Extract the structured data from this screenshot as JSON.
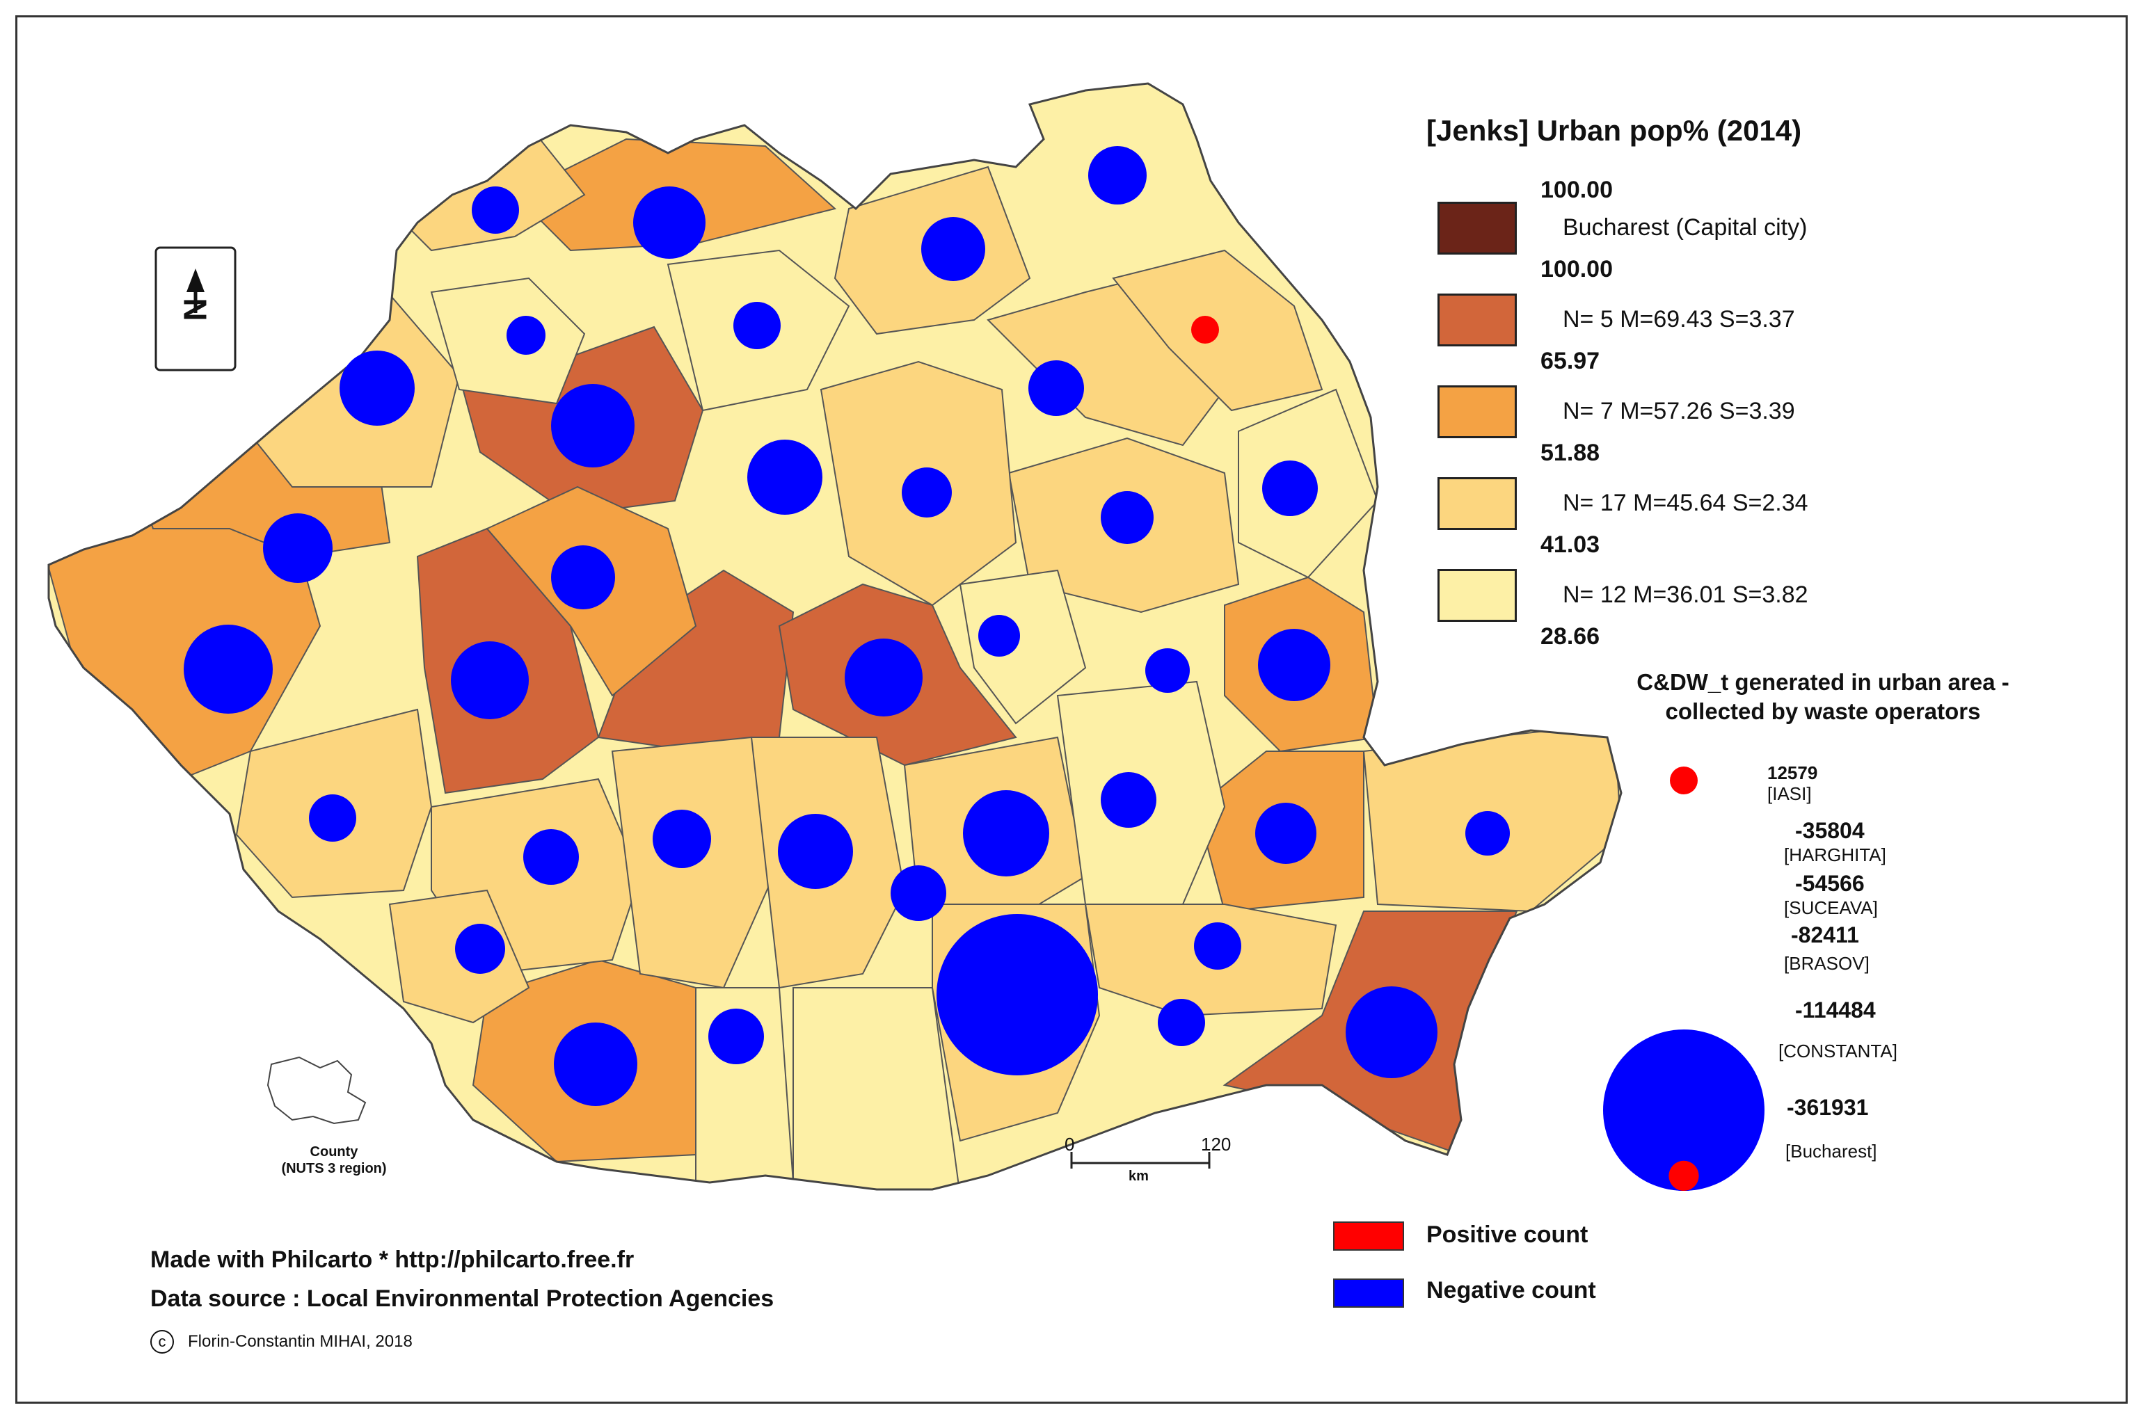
{
  "legend": {
    "title": "[Jenks] Urban pop% (2014)",
    "breaks": [
      "100.00",
      "100.00",
      "65.97",
      "51.88",
      "41.03",
      "28.66"
    ],
    "classes": [
      {
        "label": "Bucharest (Capital city)",
        "color": "#6b2418"
      },
      {
        "label": "N= 5  M=69.43  S=3.37",
        "color": "#d2663a"
      },
      {
        "label": "N= 7  M=57.26  S=3.39",
        "color": "#f4a244"
      },
      {
        "label": "N= 17  M=45.64  S=2.34",
        "color": "#fcd67f"
      },
      {
        "label": "N= 12  M=36.01  S=3.82",
        "color": "#fdf0a6"
      }
    ]
  },
  "proportional": {
    "title_line1": "C&DW_t generated in urban area -",
    "title_line2": "collected by waste operators",
    "items": [
      {
        "value": "12579",
        "county": "[IASI]",
        "color": "#ff0000"
      },
      {
        "value": "-35804",
        "county": "[HARGHITA]",
        "color": "#0000ff"
      },
      {
        "value": "-54566",
        "county": "[SUCEAVA]",
        "color": "#0000ff"
      },
      {
        "value": "-82411",
        "county": "[BRASOV]",
        "color": "#0000ff"
      },
      {
        "value": "-114484",
        "county": "[CONSTANTA]",
        "color": "#0000ff"
      },
      {
        "value": "-361931",
        "county": "[Bucharest]",
        "color": "#0000ff"
      }
    ]
  },
  "sign_legend": {
    "positive": {
      "label": "Positive count",
      "color": "#ff0000"
    },
    "negative": {
      "label": "Negative count",
      "color": "#0000ff"
    }
  },
  "north_arrow": {
    "label": "N",
    "icon": "north-arrow-icon"
  },
  "scale_bar": {
    "start": "0",
    "end": "120",
    "unit": "km"
  },
  "inset": {
    "line1": "County",
    "line2": "(NUTS 3 region)"
  },
  "credits": {
    "made_with": "Made with   Philcarto  * http://philcarto.free.fr",
    "data_source": "Data source :  Local  Environmental Protection Agencies",
    "copyright_symbol": "c",
    "author": "Florin-Constantin MIHAI, 2018"
  },
  "map_symbols": [
    {
      "county": "Iasi",
      "value": 12579,
      "sign": "positive"
    },
    {
      "county": "Harghita",
      "value": -35804,
      "sign": "negative"
    },
    {
      "county": "Suceava",
      "value": -54566,
      "sign": "negative"
    },
    {
      "county": "Brasov",
      "value": -82411,
      "sign": "negative"
    },
    {
      "county": "Constanta",
      "value": -114484,
      "sign": "negative"
    },
    {
      "county": "Bucharest",
      "value": -361931,
      "sign": "negative"
    }
  ]
}
